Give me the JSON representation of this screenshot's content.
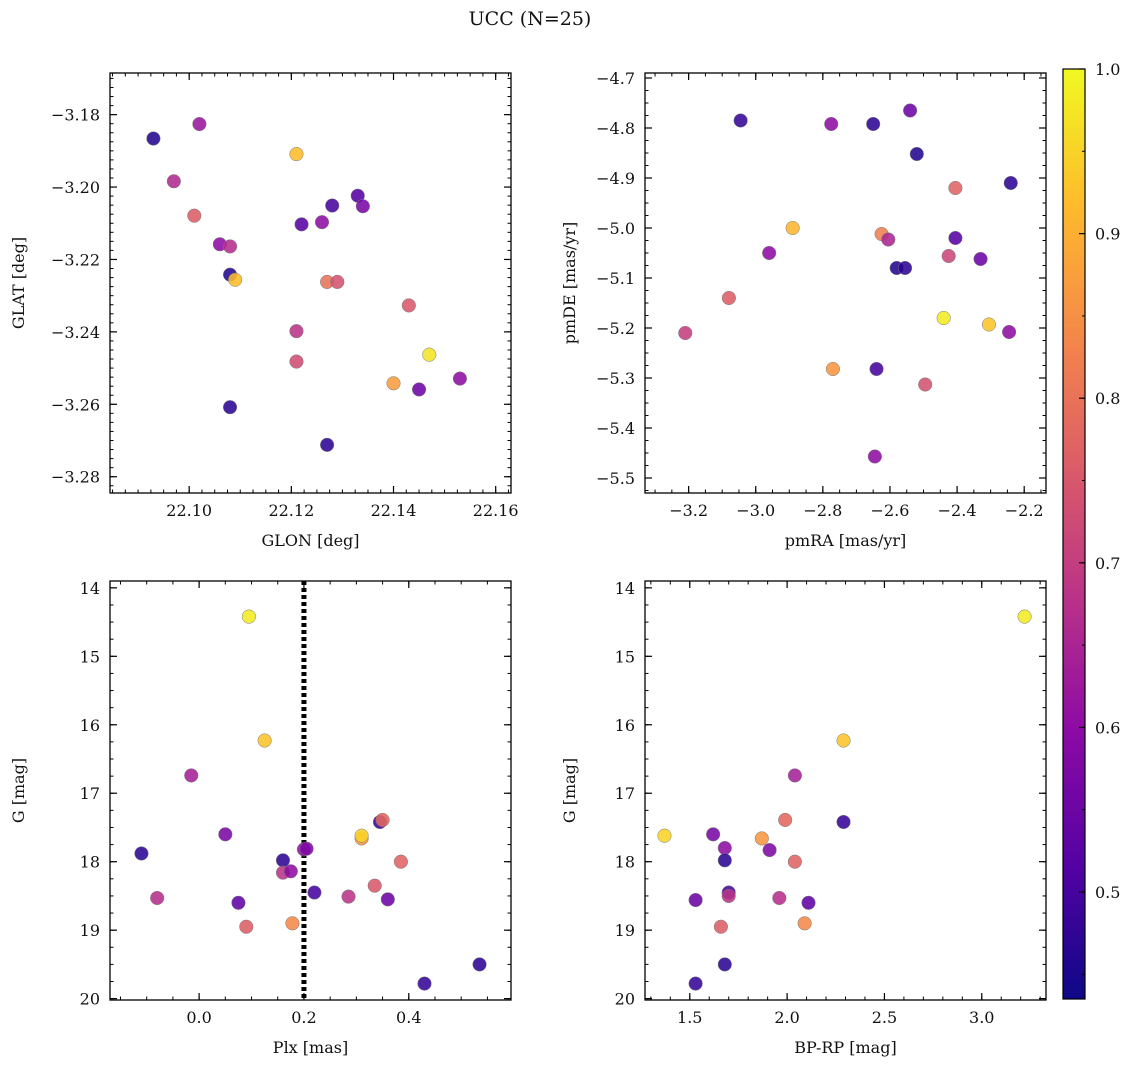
{
  "figure": {
    "title": "UCC (N=25)"
  },
  "colorbar": {
    "cmap": "plasma",
    "range": [
      0.435,
      1.0
    ],
    "ticks": [
      "0.5",
      "0.6",
      "0.7",
      "0.8",
      "0.9",
      "1.0"
    ]
  },
  "chart_data": [
    {
      "type": "scatter",
      "title": "",
      "xlabel": "GLON [deg]",
      "ylabel": "GLAT [deg]",
      "xlim": [
        22.0845,
        22.163
      ],
      "ylim": [
        -3.2845,
        -3.1685
      ],
      "xticks": [
        "22.10",
        "22.12",
        "22.14",
        "22.16"
      ],
      "yticks": [
        "-3.18",
        "-3.20",
        "-3.22",
        "-3.24",
        "-3.26",
        "-3.28"
      ],
      "points": [
        {
          "x": 22.093,
          "y": -3.1866,
          "p": 0.46
        },
        {
          "x": 22.102,
          "y": -3.1826,
          "p": 0.62
        },
        {
          "x": 22.097,
          "y": -3.1984,
          "p": 0.66
        },
        {
          "x": 22.101,
          "y": -3.2079,
          "p": 0.76
        },
        {
          "x": 22.106,
          "y": -3.2158,
          "p": 0.6
        },
        {
          "x": 22.108,
          "y": -3.2164,
          "p": 0.67
        },
        {
          "x": 22.108,
          "y": -3.2242,
          "p": 0.46
        },
        {
          "x": 22.109,
          "y": -3.2256,
          "p": 0.92
        },
        {
          "x": 22.108,
          "y": -3.2608,
          "p": 0.47
        },
        {
          "x": 22.121,
          "y": -3.1909,
          "p": 0.92
        },
        {
          "x": 22.122,
          "y": -3.2103,
          "p": 0.52
        },
        {
          "x": 22.121,
          "y": -3.2398,
          "p": 0.68
        },
        {
          "x": 22.121,
          "y": -3.2482,
          "p": 0.73
        },
        {
          "x": 22.126,
          "y": -3.2097,
          "p": 0.6
        },
        {
          "x": 22.127,
          "y": -3.2262,
          "p": 0.8
        },
        {
          "x": 22.129,
          "y": -3.2262,
          "p": 0.74
        },
        {
          "x": 22.127,
          "y": -3.2712,
          "p": 0.47
        },
        {
          "x": 22.128,
          "y": -3.2051,
          "p": 0.5
        },
        {
          "x": 22.133,
          "y": -3.2024,
          "p": 0.52
        },
        {
          "x": 22.134,
          "y": -3.2053,
          "p": 0.57
        },
        {
          "x": 22.143,
          "y": -3.2327,
          "p": 0.75
        },
        {
          "x": 22.147,
          "y": -3.2463,
          "p": 0.97
        },
        {
          "x": 22.14,
          "y": -3.2542,
          "p": 0.87
        },
        {
          "x": 22.145,
          "y": -3.2559,
          "p": 0.55
        },
        {
          "x": 22.153,
          "y": -3.2529,
          "p": 0.6
        }
      ]
    },
    {
      "type": "scatter",
      "title": "",
      "xlabel": "pmRA [mas/yr]",
      "ylabel": "pmDE [mas/yr]",
      "xlim": [
        -3.33,
        -2.135
      ],
      "ylim": [
        -5.53,
        -4.69
      ],
      "xticks": [
        "-3.2",
        "-3.0",
        "-2.8",
        "-2.6",
        "-2.4",
        "-2.2"
      ],
      "yticks": [
        "-4.7",
        "-4.8",
        "-4.9",
        "-5.0",
        "-5.1",
        "-5.2",
        "-5.3",
        "-5.4",
        "-5.5"
      ],
      "points": [
        {
          "x": -3.045,
          "y": -4.785,
          "p": 0.48
        },
        {
          "x": -2.775,
          "y": -4.792,
          "p": 0.6
        },
        {
          "x": -2.65,
          "y": -4.792,
          "p": 0.47
        },
        {
          "x": -2.54,
          "y": -4.765,
          "p": 0.55
        },
        {
          "x": -2.52,
          "y": -4.852,
          "p": 0.46
        },
        {
          "x": -2.405,
          "y": -4.92,
          "p": 0.77
        },
        {
          "x": -2.24,
          "y": -4.91,
          "p": 0.47
        },
        {
          "x": -2.89,
          "y": -5.0,
          "p": 0.91
        },
        {
          "x": -2.625,
          "y": -5.012,
          "p": 0.82
        },
        {
          "x": -2.605,
          "y": -5.023,
          "p": 0.65
        },
        {
          "x": -2.405,
          "y": -5.02,
          "p": 0.52
        },
        {
          "x": -2.96,
          "y": -5.05,
          "p": 0.6
        },
        {
          "x": -2.425,
          "y": -5.056,
          "p": 0.72
        },
        {
          "x": -2.33,
          "y": -5.062,
          "p": 0.55
        },
        {
          "x": -2.58,
          "y": -5.08,
          "p": 0.46
        },
        {
          "x": -2.555,
          "y": -5.08,
          "p": 0.47
        },
        {
          "x": -3.08,
          "y": -5.14,
          "p": 0.76
        },
        {
          "x": -2.44,
          "y": -5.18,
          "p": 0.98
        },
        {
          "x": -2.305,
          "y": -5.193,
          "p": 0.93
        },
        {
          "x": -3.21,
          "y": -5.21,
          "p": 0.7
        },
        {
          "x": -2.245,
          "y": -5.208,
          "p": 0.6
        },
        {
          "x": -2.77,
          "y": -5.282,
          "p": 0.86
        },
        {
          "x": -2.64,
          "y": -5.282,
          "p": 0.5
        },
        {
          "x": -2.495,
          "y": -5.313,
          "p": 0.74
        },
        {
          "x": -2.645,
          "y": -5.457,
          "p": 0.6
        }
      ]
    },
    {
      "type": "scatter",
      "title": "",
      "xlabel": "Plx [mas]",
      "ylabel": "G [mag]",
      "xlim": [
        -0.17,
        0.595
      ],
      "ylim": [
        20.02,
        13.9
      ],
      "xticks": [
        "0.0",
        "0.2",
        "0.4"
      ],
      "yticks": [
        "14",
        "15",
        "16",
        "17",
        "18",
        "19",
        "20"
      ],
      "vline": 0.2,
      "points": [
        {
          "x": 0.095,
          "y": 14.42,
          "p": 0.98
        },
        {
          "x": 0.125,
          "y": 16.23,
          "p": 0.93
        },
        {
          "x": -0.015,
          "y": 16.74,
          "p": 0.64
        },
        {
          "x": 0.05,
          "y": 17.6,
          "p": 0.57
        },
        {
          "x": -0.11,
          "y": 17.88,
          "p": 0.47
        },
        {
          "x": -0.08,
          "y": 18.53,
          "p": 0.67
        },
        {
          "x": 0.075,
          "y": 18.6,
          "p": 0.53
        },
        {
          "x": 0.09,
          "y": 18.95,
          "p": 0.76
        },
        {
          "x": 0.16,
          "y": 17.98,
          "p": 0.47
        },
        {
          "x": 0.16,
          "y": 18.16,
          "p": 0.68
        },
        {
          "x": 0.175,
          "y": 18.14,
          "p": 0.6
        },
        {
          "x": 0.178,
          "y": 18.9,
          "p": 0.84
        },
        {
          "x": 0.2,
          "y": 17.82,
          "p": 0.6
        },
        {
          "x": 0.205,
          "y": 17.81,
          "p": 0.58
        },
        {
          "x": 0.22,
          "y": 18.45,
          "p": 0.5
        },
        {
          "x": 0.285,
          "y": 18.51,
          "p": 0.68
        },
        {
          "x": 0.31,
          "y": 17.66,
          "p": 0.86
        },
        {
          "x": 0.31,
          "y": 17.62,
          "p": 0.95
        },
        {
          "x": 0.335,
          "y": 18.35,
          "p": 0.75
        },
        {
          "x": 0.345,
          "y": 17.42,
          "p": 0.48
        },
        {
          "x": 0.35,
          "y": 17.39,
          "p": 0.78
        },
        {
          "x": 0.36,
          "y": 18.55,
          "p": 0.55
        },
        {
          "x": 0.385,
          "y": 18.0,
          "p": 0.77
        },
        {
          "x": 0.43,
          "y": 19.78,
          "p": 0.48
        },
        {
          "x": 0.535,
          "y": 19.5,
          "p": 0.47
        }
      ]
    },
    {
      "type": "scatter",
      "title": "",
      "xlabel": "BP-RP [mag]",
      "ylabel": "G [mag]",
      "xlim": [
        1.27,
        3.33
      ],
      "ylim": [
        20.02,
        13.9
      ],
      "xticks": [
        "1.5",
        "2.0",
        "2.5",
        "3.0"
      ],
      "yticks": [
        "14",
        "15",
        "16",
        "17",
        "18",
        "19",
        "20"
      ],
      "points": [
        {
          "x": 3.22,
          "y": 14.42,
          "p": 0.98
        },
        {
          "x": 2.29,
          "y": 16.23,
          "p": 0.93
        },
        {
          "x": 2.04,
          "y": 16.74,
          "p": 0.64
        },
        {
          "x": 1.37,
          "y": 17.62,
          "p": 0.95
        },
        {
          "x": 1.62,
          "y": 17.6,
          "p": 0.57
        },
        {
          "x": 1.68,
          "y": 17.8,
          "p": 0.6
        },
        {
          "x": 1.68,
          "y": 17.98,
          "p": 0.47
        },
        {
          "x": 1.87,
          "y": 17.66,
          "p": 0.86
        },
        {
          "x": 1.91,
          "y": 17.83,
          "p": 0.58
        },
        {
          "x": 1.99,
          "y": 17.39,
          "p": 0.78
        },
        {
          "x": 2.29,
          "y": 17.42,
          "p": 0.48
        },
        {
          "x": 2.04,
          "y": 18.0,
          "p": 0.77
        },
        {
          "x": 1.7,
          "y": 18.45,
          "p": 0.5
        },
        {
          "x": 1.7,
          "y": 18.5,
          "p": 0.68
        },
        {
          "x": 1.96,
          "y": 18.53,
          "p": 0.67
        },
        {
          "x": 2.11,
          "y": 18.6,
          "p": 0.53
        },
        {
          "x": 1.53,
          "y": 18.56,
          "p": 0.55
        },
        {
          "x": 1.66,
          "y": 18.95,
          "p": 0.76
        },
        {
          "x": 2.09,
          "y": 18.9,
          "p": 0.84
        },
        {
          "x": 1.68,
          "y": 19.5,
          "p": 0.47
        },
        {
          "x": 1.53,
          "y": 19.78,
          "p": 0.48
        }
      ]
    }
  ]
}
